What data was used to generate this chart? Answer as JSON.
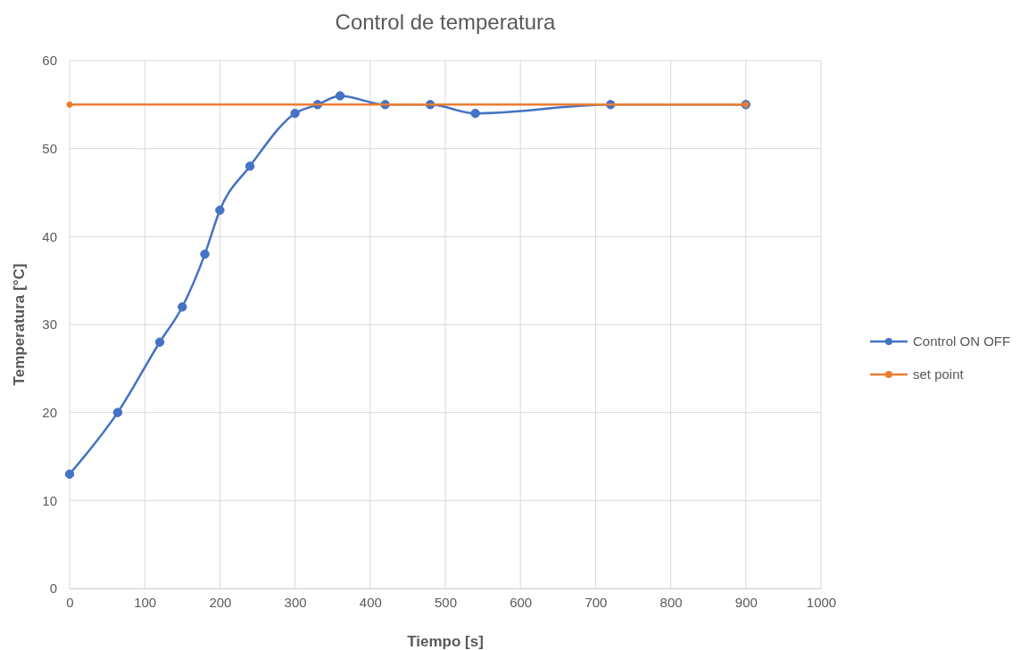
{
  "chart_data": {
    "type": "line",
    "title": "Control de temperatura",
    "xlabel": "Tiempo [s]",
    "ylabel": "Temperatura [°C]",
    "xlim": [
      0,
      1000
    ],
    "xticks": [
      0,
      100,
      200,
      300,
      400,
      500,
      600,
      700,
      800,
      900,
      1000
    ],
    "ylim": [
      0,
      60
    ],
    "yticks": [
      0,
      10,
      20,
      30,
      40,
      50,
      60
    ],
    "grid": true,
    "legend": "right",
    "marker": "circle",
    "series": [
      {
        "name": "Control ON OFF",
        "color": "#4472c4",
        "x": [
          0,
          64,
          120,
          150,
          180,
          200,
          240,
          300,
          330,
          360,
          420,
          480,
          540,
          720,
          900
        ],
        "values": [
          13,
          20,
          28,
          32,
          38,
          43,
          48,
          54,
          55,
          56,
          55,
          55,
          54,
          55,
          55
        ]
      },
      {
        "name": "set point",
        "color": "#ed7d31",
        "x": [
          0,
          900
        ],
        "values": [
          55,
          55
        ]
      }
    ]
  }
}
